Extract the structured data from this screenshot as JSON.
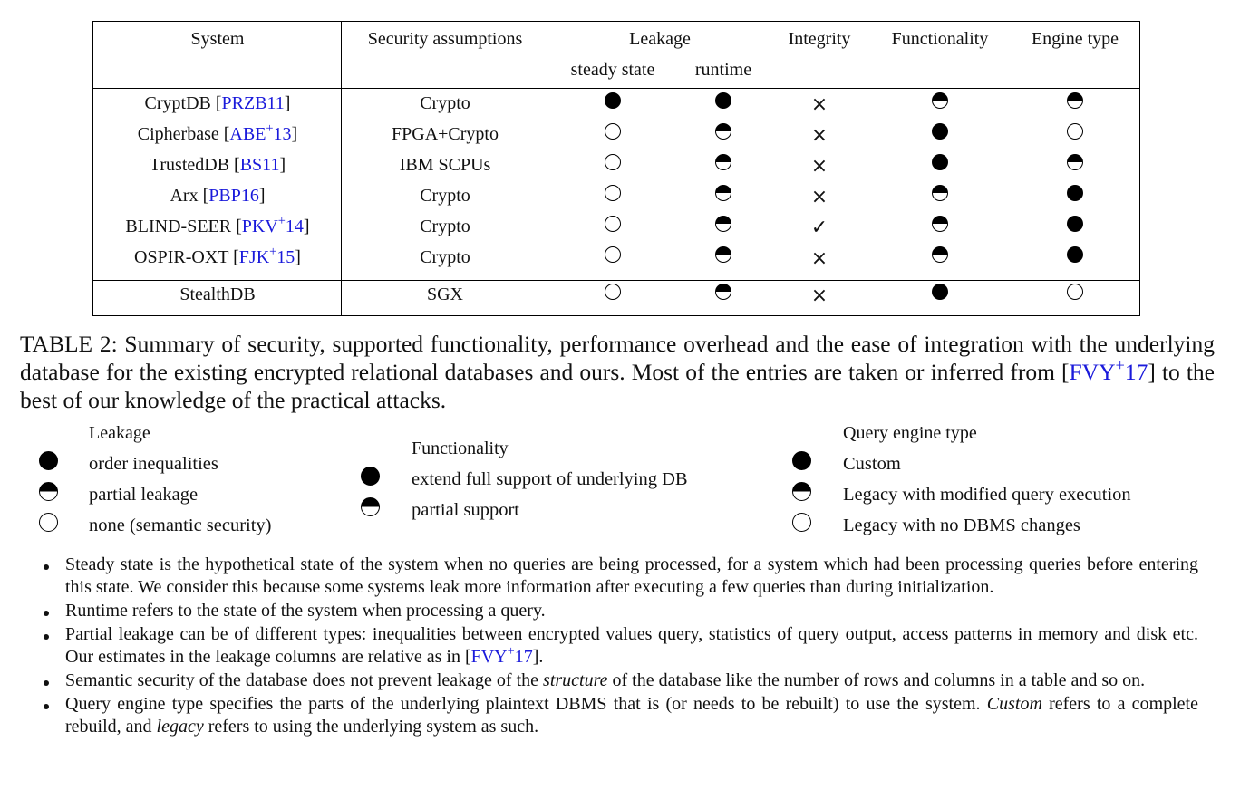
{
  "table": {
    "headers": {
      "system": "System",
      "security": "Security assumptions",
      "leakage": "Leakage",
      "steady": "steady state",
      "runtime": "runtime",
      "integrity": "Integrity",
      "functionality": "Functionality",
      "engine": "Engine type"
    },
    "rows": [
      {
        "name": "CryptDB [",
        "cite": "PRZB11",
        "sup": "",
        "cite2": "",
        "close": "]",
        "security": "Crypto",
        "steady": "full",
        "runtime": "full",
        "integrity": "×",
        "functionality": "half",
        "engine": "half"
      },
      {
        "name": "Cipherbase [",
        "cite": "ABE",
        "sup": "+",
        "cite2": "13",
        "close": "]",
        "security": "FPGA+Crypto",
        "steady": "none",
        "runtime": "half",
        "integrity": "×",
        "functionality": "full",
        "engine": "none"
      },
      {
        "name": "TrustedDB [",
        "cite": "BS11",
        "sup": "",
        "cite2": "",
        "close": "]",
        "security": "IBM SCPUs",
        "steady": "none",
        "runtime": "half",
        "integrity": "×",
        "functionality": "full",
        "engine": "half"
      },
      {
        "name": "Arx [",
        "cite": "PBP16",
        "sup": "",
        "cite2": "",
        "close": "]",
        "security": "Crypto",
        "steady": "none",
        "runtime": "half",
        "integrity": "×",
        "functionality": "half",
        "engine": "full"
      },
      {
        "name": "BLIND-SEER [",
        "cite": "PKV",
        "sup": "+",
        "cite2": "14",
        "close": "]",
        "security": "Crypto",
        "steady": "none",
        "runtime": "half",
        "integrity": "✓",
        "functionality": "half",
        "engine": "full"
      },
      {
        "name": "OSPIR-OXT [",
        "cite": "FJK",
        "sup": "+",
        "cite2": "15",
        "close": "]",
        "security": "Crypto",
        "steady": "none",
        "runtime": "half",
        "integrity": "×",
        "functionality": "half",
        "engine": "full"
      },
      {
        "name": "StealthDB",
        "cite": "",
        "sup": "",
        "cite2": "",
        "close": "",
        "security": "SGX",
        "steady": "none",
        "runtime": "half",
        "integrity": "×",
        "functionality": "full",
        "engine": "none"
      }
    ]
  },
  "caption": {
    "part1": "TABLE 2: Summary of security, supported functionality, performance overhead and the ease of integration with the underlying database for the existing encrypted relational databases and ours. Most of the entries are taken or inferred from [",
    "cite": "FVY",
    "sup": "+",
    "cite2": "17",
    "part2": "] to the best of our knowledge of the practical attacks."
  },
  "legend": {
    "leakage": {
      "title": "Leakage",
      "items": [
        {
          "symbol": "full",
          "label": "order inequalities"
        },
        {
          "symbol": "half",
          "label": "partial leakage"
        },
        {
          "symbol": "none",
          "label": "none (semantic security)"
        }
      ]
    },
    "functionality": {
      "title": "Functionality",
      "items": [
        {
          "symbol": "full",
          "label": "extend full support of underlying DB"
        },
        {
          "symbol": "half",
          "label": "partial support"
        }
      ]
    },
    "engine": {
      "title": "Query engine type",
      "items": [
        {
          "symbol": "full",
          "label": "Custom"
        },
        {
          "symbol": "half",
          "label": "Legacy with modified query execution"
        },
        {
          "symbol": "none",
          "label": "Legacy with no DBMS changes"
        }
      ]
    }
  },
  "notes": {
    "n1": "Steady state is the hypothetical state of the system when no queries are being processed, for a system which had been processing queries before entering this state. We consider this because some systems leak more information after executing a few queries than during initialization.",
    "n2": "Runtime refers to the state of the system when processing a query.",
    "n3_a": "Partial leakage can be of different types: inequalities between encrypted values query, statistics of query output, access patterns in memory and disk etc. Our estimates in the leakage columns are relative as in [",
    "n3_cite": "FVY",
    "n3_sup": "+",
    "n3_cite2": "17",
    "n3_b": "].",
    "n4_a": "Semantic security of the database does not prevent leakage of the ",
    "n4_em": "structure",
    "n4_b": " of the database like the number of rows and columns in a table and so on.",
    "n5_a": "Query engine type specifies the parts of the underlying plaintext DBMS that is (or needs to be rebuilt) to use the system. ",
    "n5_em1": "Custom",
    "n5_b": " refers to a complete rebuild, and ",
    "n5_em2": "legacy",
    "n5_c": " refers to using the underlying system as such."
  },
  "colors": {
    "citation": "#1a1adb",
    "symbol": "#000000"
  }
}
